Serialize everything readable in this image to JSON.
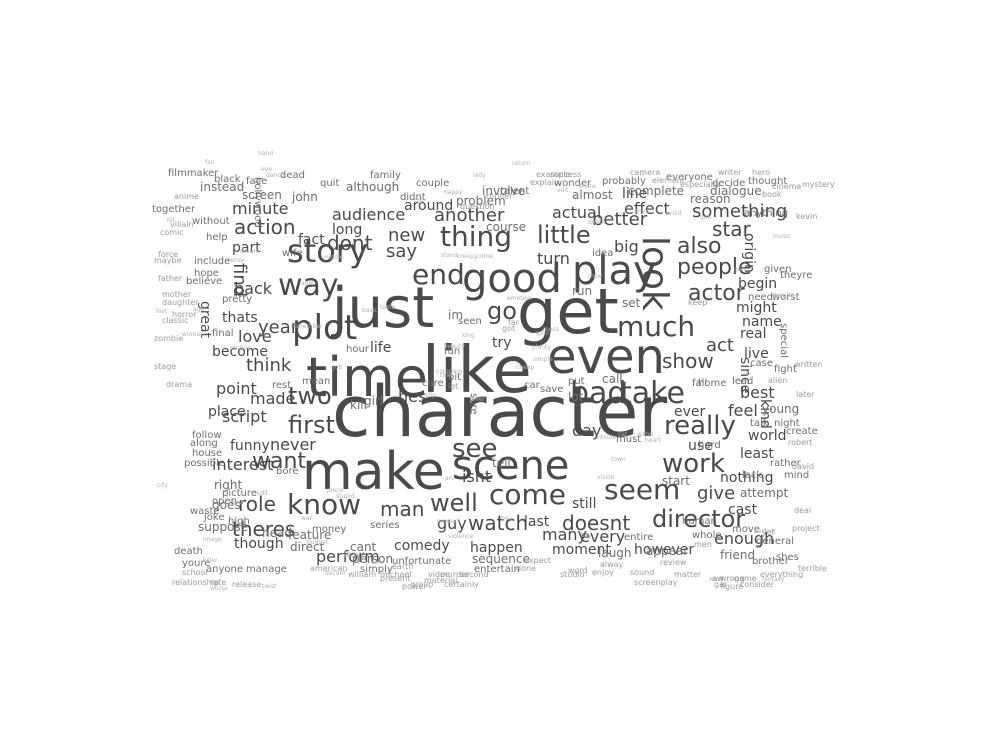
{
  "colors": {
    "word": "#4a4a4a",
    "word_light": "#6e6e6e",
    "word_faint": "#9a9a9a",
    "background": "#ffffff"
  },
  "words": {
    "character": "character",
    "like": "like",
    "make": "make",
    "get": "get",
    "time": "time",
    "just": "just",
    "even": "even",
    "good": "good",
    "play": "play",
    "look": "look",
    "scene": "scene",
    "plot": "plot",
    "story": "story",
    "bad": "bad",
    "take": "take",
    "end": "end",
    "see": "see",
    "much": "much",
    "thing": "thing",
    "way": "way",
    "seem": "seem",
    "come": "come",
    "know": "know",
    "two": "two",
    "work": "work",
    "really": "really",
    "people": "people",
    "director": "director",
    "actor": "actor",
    "also": "also",
    "well": "well",
    "first": "first",
    "little": "little",
    "show": "show",
    "want": "want",
    "go": "go",
    "dont": "dont",
    "action": "action",
    "watch": "watch",
    "man": "man",
    "role": "role",
    "theres": "theres",
    "doesnt": "doesnt",
    "perform": "perform",
    "star": "star",
    "say": "say",
    "new": "new",
    "another": "another",
    "something": "something",
    "think": "think",
    "year": "year",
    "act": "act",
    "find": "find",
    "better": "better",
    "give": "give",
    "audience": "audience",
    "hes": "hes",
    "love": "love",
    "isnt": "isnt",
    "made": "made",
    "never": "never",
    "best": "best",
    "many": "many",
    "guy": "guy",
    "every": "every",
    "enough": "enough",
    "interest": "interest",
    "feel": "feel",
    "script": "script",
    "however": "however",
    "point": "point",
    "day": "day",
    "back": "back",
    "minute": "minute",
    "big": "big",
    "turn": "turn",
    "effect": "effect",
    "actual": "actual",
    "try": "try",
    "life": "life",
    "nothing": "nothing",
    "thats": "thats",
    "though": "though",
    "comedy": "comedy",
    "name": "name",
    "funny": "funny",
    "become": "become",
    "world": "world",
    "cast": "cast",
    "since": "since",
    "around": "around",
    "line": "line",
    "long": "long",
    "fact": "fact",
    "part": "part",
    "great": "great",
    "last": "last",
    "use": "use",
    "happen": "happen",
    "moment": "moment",
    "still": "still",
    "least": "least",
    "ever": "ever",
    "real": "real",
    "origin": "origin",
    "kind": "kind",
    "might": "might",
    "begin": "begin",
    "live": "live",
    "place": "place",
    "problem": "problem",
    "almost": "almost",
    "kill": "kill",
    "seen": "seen",
    "run": "run",
    "set": "set",
    "call": "call",
    "lot": "lot",
    "tell": "tell",
    "cant": "cant",
    "direct": "direct",
    "sequence": "sequence",
    "young": "young",
    "attempt": "attempt",
    "start": "start",
    "right": "right",
    "picture": "picture",
    "appear": "appear",
    "friend": "friend",
    "laugh": "laugh",
    "course": "course",
    "involve": "involve",
    "complete": "complete",
    "dialogue": "dialogue",
    "reason": "reason",
    "girl": "girl",
    "screen": "screen",
    "instead": "instead",
    "goes": "goes",
    "suppose": "suppose",
    "john": "john",
    "although": "although",
    "hollywood": "hollywood",
    "wife": "wife",
    "help": "help",
    "fun": "fun",
    "final": "final",
    "hour": "hour",
    "pretty": "pretty",
    "hope": "hope",
    "believe": "believe",
    "include": "include",
    "without": "without",
    "together": "together",
    "black": "black",
    "filmmaker": "filmmaker",
    "face": "face",
    "couple": "couple",
    "probably": "probably",
    "everyone": "everyone",
    "thought": "thought",
    "anything": "anything",
    "need": "need",
    "given": "given",
    "theyre": "theyre",
    "fight": "fight",
    "case": "case",
    "night": "night",
    "talk": "talk",
    "hard": "hard",
    "human": "human",
    "whole": "whole",
    "move": "move",
    "general": "general",
    "shes": "shes",
    "brother": "brother",
    "mind": "mind",
    "rather": "rather",
    "create": "create",
    "lack": "lack",
    "worst": "worst",
    "dead": "dead",
    "family": "family",
    "quit": "quit",
    "bore": "bore",
    "talent": "talent",
    "entire": "entire",
    "review": "review",
    "matter": "matter",
    "sound": "sound",
    "alway": "alway",
    "wonder": "wonder",
    "idea": "idea",
    "must": "must",
    "fall": "fall",
    "home": "home",
    "lead": "lead",
    "series": "series",
    "money": "money",
    "head": "head",
    "feature": "feature",
    "person": "person",
    "simply": "simply",
    "unfortunate": "unfortunate",
    "entertain": "entertain",
    "american": "american",
    "william": "william",
    "michael": "michael",
    "didnt": "didnt",
    "mean": "mean",
    "rest": "rest",
    "joke": "joke",
    "open": "open",
    "waste": "waste",
    "high": "high",
    "possible": "possible",
    "along": "along",
    "follow": "follow",
    "house": "house",
    "anyone": "anyone",
    "manage": "manage",
    "death": "death",
    "youre": "youre",
    "school": "school",
    "relationship": "relationship",
    "rate": "rate",
    "camera": "camera",
    "element": "element",
    "writer": "writer",
    "hero": "hero",
    "book": "book",
    "decide": "decide",
    "especially": "especially",
    "kevin": "kevin",
    "mystery": "mystery",
    "written": "written",
    "alien": "alien",
    "deal": "deal",
    "david": "david",
    "robert": "robert",
    "project": "project",
    "terrible": "terrible",
    "everything": "everything",
    "figure": "figure",
    "consider": "consider",
    "video": "video",
    "murder": "murder",
    "second": "second",
    "studio": "studio",
    "word": "word",
    "group": "group",
    "leave": "leave",
    "material": "material",
    "present": "present",
    "certainly": "certainly",
    "question": "question",
    "thriller": "thriller",
    "explain": "explain",
    "example": "example",
    "done": "done",
    "success": "success",
    "expect": "expect",
    "enjoy": "enjoy",
    "screenplay": "screenplay",
    "special": "special",
    "keep": "keep",
    "later": "later",
    "aw": "aw",
    "gar": "gar",
    "yet": "yet",
    "men": "men",
    "car": "car",
    "bit": "bit",
    "care": "care",
    "put": "put",
    "save": "save",
    "got": "got",
    "far": "far",
    "let": "let",
    "im": "im",
    "sure": "sure",
    "wrong": "wrong",
    "game": "game",
    "cinema": "cinema",
    "anime": "anime",
    "comic": "comic",
    "force": "force",
    "maybe": "maybe",
    "father": "father",
    "mother": "mother",
    "daughter": "daughter",
    "horror": "horror",
    "classic": "classic",
    "zombie": "zombie",
    "villain": "villain",
    "stage": "stage",
    "drama": "drama",
    "power": "power",
    "earth": "earth",
    "release": "release"
  },
  "filler": [
    "level",
    "sense",
    "title",
    "image",
    "spoil",
    "stupid",
    "share",
    "crime",
    "death",
    "cheap",
    "dance",
    "fantasy",
    "motion",
    "music",
    "silly",
    "crew",
    "twist",
    "stand",
    "emotion",
    "credit",
    "taste",
    "killer",
    "budget",
    "creepy",
    "mess",
    "heart",
    "dream",
    "happy",
    "woman",
    "ridicule",
    "despite",
    "compare",
    "product",
    "beauty",
    "middle",
    "drive",
    "piece",
    "wast",
    "perfect",
    "water",
    "return",
    "basic",
    "remember",
    "vision",
    "decent",
    "lost",
    "plenty",
    "worse",
    "violence",
    "simple",
    "sex",
    "gun",
    "hit",
    "town",
    "key",
    "war",
    "eye",
    "fan",
    "boy",
    "god",
    "lady",
    "job",
    "age",
    "able",
    "avoid",
    "hand",
    "edit",
    "cop",
    "king",
    "city",
    "art",
    "van",
    "cat"
  ]
}
